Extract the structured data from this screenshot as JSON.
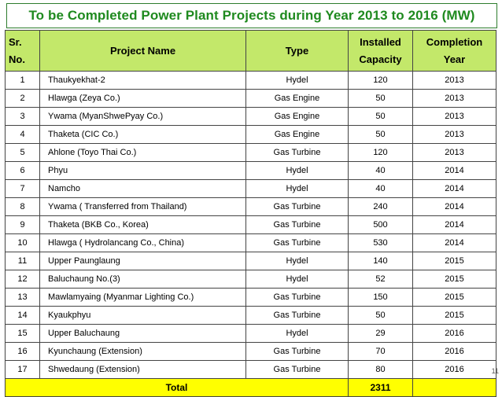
{
  "title": "To be Completed Power Plant Projects during Year 2013 to 2016 (MW)",
  "headers": {
    "no_line1": "Sr.",
    "no_line2": "No.",
    "name": "Project Name",
    "type": "Type",
    "capacity_line1": "Installed",
    "capacity_line2": "Capacity",
    "year_line1": "Completion",
    "year_line2": "Year"
  },
  "rows": [
    {
      "no": "1",
      "name": "Thaukyekhat-2",
      "type": "Hydel",
      "capacity": "120",
      "year": "2013"
    },
    {
      "no": "2",
      "name": "Hlawga (Zeya Co.)",
      "type": "Gas Engine",
      "capacity": "50",
      "year": "2013"
    },
    {
      "no": "3",
      "name": "Ywama (MyanShwePyay  Co.)",
      "type": "Gas Engine",
      "capacity": "50",
      "year": "2013"
    },
    {
      "no": "4",
      "name": "Thaketa (CIC  Co.)",
      "type": "Gas Engine",
      "capacity": "50",
      "year": "2013"
    },
    {
      "no": "5",
      "name": "Ahlone (Toyo Thai  Co.)",
      "type": "Gas Turbine",
      "capacity": "120",
      "year": "2013"
    },
    {
      "no": "6",
      "name": "Phyu",
      "type": "Hydel",
      "capacity": "40",
      "year": "2014"
    },
    {
      "no": "7",
      "name": "Namcho",
      "type": "Hydel",
      "capacity": "40",
      "year": "2014"
    },
    {
      "no": "8",
      "name": "Ywama ( Transferred from Thailand)",
      "type": "Gas Turbine",
      "capacity": "240",
      "year": "2014"
    },
    {
      "no": "9",
      "name": "Thaketa (BKB  Co., Korea)",
      "type": "Gas Turbine",
      "capacity": "500",
      "year": "2014"
    },
    {
      "no": "10",
      "name": "Hlawga ( Hydrolancang  Co., China)",
      "type": "Gas Turbine",
      "capacity": "530",
      "year": "2014"
    },
    {
      "no": "11",
      "name": "Upper Paunglaung",
      "type": "Hydel",
      "capacity": "140",
      "year": "2015"
    },
    {
      "no": "12",
      "name": "Baluchaung No.(3)",
      "type": "Hydel",
      "capacity": "52",
      "year": "2015"
    },
    {
      "no": "13",
      "name": "Mawlamyaing (Myanmar Lighting Co.)",
      "type": "Gas Turbine",
      "capacity": "150",
      "year": "2015"
    },
    {
      "no": "14",
      "name": "Kyaukphyu",
      "type": "Gas Turbine",
      "capacity": "50",
      "year": "2015"
    },
    {
      "no": "15",
      "name": "Upper Baluchaung",
      "type": "Hydel",
      "capacity": "29",
      "year": "2016"
    },
    {
      "no": "16",
      "name": "Kyunchaung (Extension)",
      "type": "Gas Turbine",
      "capacity": "70",
      "year": "2016"
    },
    {
      "no": "17",
      "name": "Shwedaung (Extension)",
      "type": "Gas Turbine",
      "capacity": "80",
      "year": "2016"
    }
  ],
  "total": {
    "label": "Total",
    "capacity": "2311"
  },
  "page_number": "11",
  "colors": {
    "title": "#1f8a1f",
    "header_bg": "#c3e86a",
    "total_bg": "#ffff00"
  }
}
